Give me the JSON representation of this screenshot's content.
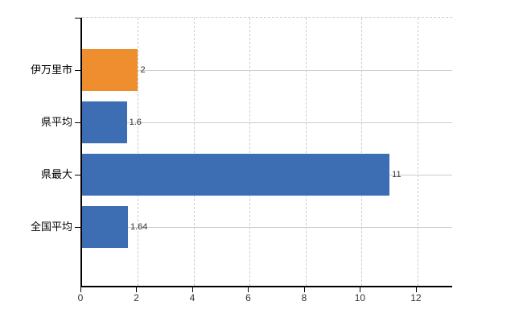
{
  "chart_data": {
    "type": "bar",
    "orientation": "horizontal",
    "title": "",
    "xlabel": "",
    "ylabel": "",
    "categories": [
      "伊万里市",
      "県平均",
      "県最大",
      "全国平均"
    ],
    "values": [
      2,
      1.6,
      11,
      1.64
    ],
    "value_labels": [
      "2",
      "1.6",
      "11",
      "1.64"
    ],
    "bar_colors": [
      "#ee8e2e",
      "#3d6eb4",
      "#3d6eb4",
      "#3d6eb4"
    ],
    "xticks": [
      0,
      2,
      4,
      6,
      8,
      10,
      12
    ],
    "xtick_labels": [
      "0",
      "2",
      "4",
      "6",
      "8",
      "10",
      "12"
    ],
    "xlim": [
      0,
      13.24
    ],
    "grid": true,
    "legend": "none",
    "colors": {
      "highlight_bar": "#ee8e2e",
      "default_bar": "#3d6eb4",
      "axis": "#000000",
      "gridline": "#cccccc",
      "value_label": "#333333",
      "tick_label": "#333333",
      "category_label": "#000000",
      "background": "#ffffff"
    }
  }
}
